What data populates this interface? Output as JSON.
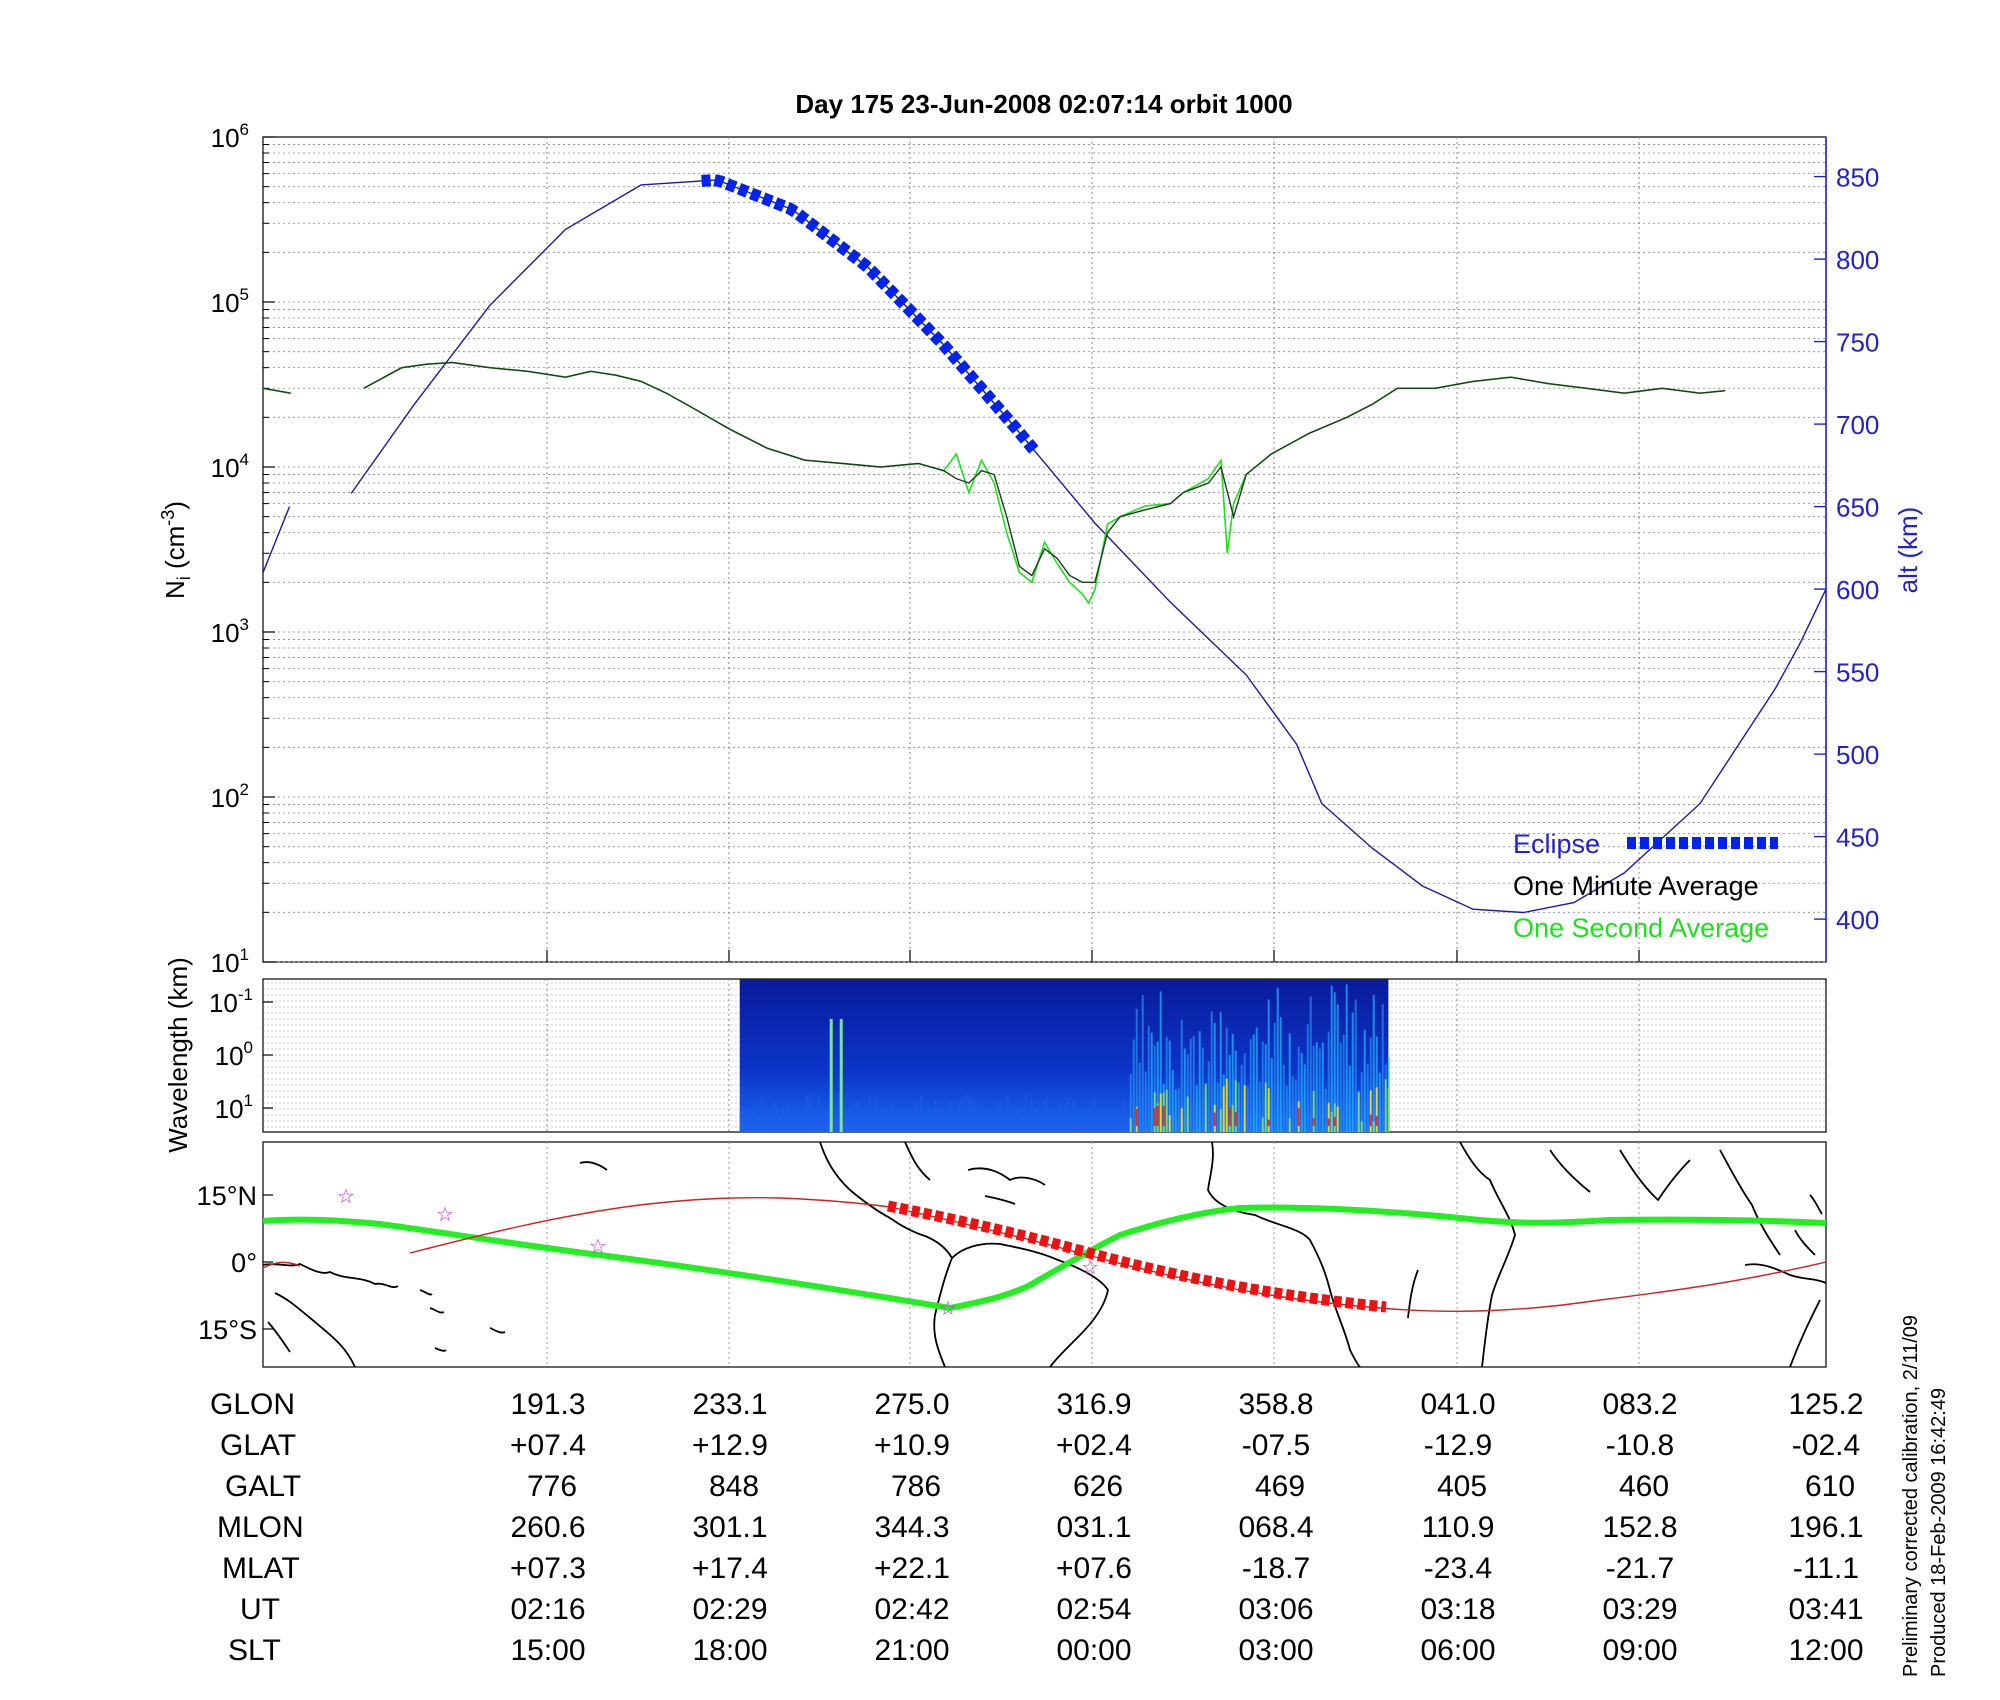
{
  "title": "Day 175  23-Jun-2008 02:07:14   orbit 1000",
  "colors": {
    "altitude": "#1a1aa6",
    "eclipse": "#0022ee",
    "one_minute": "#1a3d1a",
    "one_second": "#22dd22",
    "track": "#22ee22",
    "orbit": "#cc2222",
    "eclipse_track": "#ee1111",
    "right_axis": "#2222cc",
    "stars": "#cc33cc"
  },
  "chart_data": [
    {
      "type": "line",
      "panel": "density",
      "ylabel_left": "N_i (cm^-3)",
      "ylabel_right": "alt (km)",
      "yscale_left": "log",
      "ylim_left": [
        10,
        1000000
      ],
      "yticks_left": [
        "10^1",
        "10^2",
        "10^3",
        "10^4",
        "10^5",
        "10^6"
      ],
      "ylim_right": [
        374,
        874
      ],
      "yticks_right": [
        400,
        450,
        500,
        550,
        600,
        650,
        700,
        750,
        800,
        850
      ],
      "grid": true,
      "xlim_minutes": [
        0,
        86
      ],
      "legend_position": "bottom-right",
      "legend": [
        "Eclipse",
        "One Minute Average",
        "One Second Average"
      ],
      "series": [
        {
          "name": "alt",
          "axis": "right",
          "points": [
            [
              0,
              610
            ],
            [
              2.1,
              650
            ],
            [
              7,
              658
            ],
            [
              12,
              712
            ],
            [
              18,
              772
            ],
            [
              24,
              818
            ],
            [
              30,
              845
            ],
            [
              36,
              848
            ],
            [
              42,
              830
            ],
            [
              48,
              795
            ],
            [
              54,
              748
            ],
            [
              60,
              695
            ],
            [
              66,
              640
            ],
            [
              72,
              592
            ],
            [
              78,
              548
            ],
            [
              82,
              506
            ],
            [
              84,
              470
            ],
            [
              88,
              443
            ],
            [
              92,
              420
            ],
            [
              96,
              406
            ],
            [
              100,
              404
            ],
            [
              104,
              410
            ],
            [
              108,
              428
            ],
            [
              114,
              470
            ],
            [
              120,
              540
            ],
            [
              122,
              568
            ],
            [
              124,
              600
            ]
          ]
        },
        {
          "name": "Eclipse",
          "axis": "right",
          "segment_minutes": [
            34.8,
            61.5
          ]
        },
        {
          "name": "One Minute Average",
          "axis": "left",
          "points": [
            [
              0,
              30000
            ],
            [
              2.2,
              28000
            ],
            [
              8,
              30000
            ],
            [
              11,
              40000
            ],
            [
              13,
              42000
            ],
            [
              15,
              43000
            ],
            [
              18,
              40000
            ],
            [
              21,
              38000
            ],
            [
              24,
              35000
            ],
            [
              26,
              38000
            ],
            [
              28,
              36000
            ],
            [
              30,
              33000
            ],
            [
              32,
              28000
            ],
            [
              34,
              23000
            ],
            [
              37,
              17000
            ],
            [
              40,
              13000
            ],
            [
              43,
              11000
            ],
            [
              46,
              10500
            ],
            [
              49,
              10000
            ],
            [
              52,
              10500
            ],
            [
              54,
              9500
            ],
            [
              55,
              8500
            ],
            [
              56,
              8000
            ],
            [
              57,
              9500
            ],
            [
              58,
              9000
            ],
            [
              59,
              5000
            ],
            [
              60,
              2500
            ],
            [
              61,
              2200
            ],
            [
              62,
              3200
            ],
            [
              63,
              2800
            ],
            [
              64,
              2200
            ],
            [
              65,
              2000
            ],
            [
              66,
              2000
            ],
            [
              67,
              4000
            ],
            [
              68,
              5000
            ],
            [
              70,
              5500
            ],
            [
              72,
              6000
            ],
            [
              73,
              7000
            ],
            [
              75,
              8000
            ],
            [
              76,
              10000
            ],
            [
              77,
              5000
            ],
            [
              78,
              9000
            ],
            [
              80,
              12000
            ],
            [
              83,
              16000
            ],
            [
              86,
              20000
            ],
            [
              88,
              24000
            ],
            [
              90,
              30000
            ],
            [
              93,
              30000
            ],
            [
              96,
              33000
            ],
            [
              99,
              35000
            ],
            [
              102,
              32000
            ],
            [
              105,
              30000
            ],
            [
              108,
              28000
            ],
            [
              111,
              30000
            ],
            [
              114,
              28000
            ],
            [
              116,
              29000
            ]
          ]
        },
        {
          "name": "One Second Average",
          "axis": "left",
          "points": [
            [
              0,
              30000
            ],
            [
              2.2,
              28000
            ],
            [
              8,
              30000
            ],
            [
              11,
              40000
            ],
            [
              13,
              42000
            ],
            [
              15,
              43000
            ],
            [
              18,
              40000
            ],
            [
              21,
              38000
            ],
            [
              24,
              35000
            ],
            [
              26,
              38000
            ],
            [
              28,
              36000
            ],
            [
              30,
              33000
            ],
            [
              32,
              28000
            ],
            [
              34,
              23000
            ],
            [
              37,
              17000
            ],
            [
              40,
              13000
            ],
            [
              43,
              11000
            ],
            [
              46,
              10500
            ],
            [
              49,
              10000
            ],
            [
              52,
              10500
            ],
            [
              54,
              9500
            ],
            [
              55,
              12000
            ],
            [
              56,
              7000
            ],
            [
              57,
              11000
            ],
            [
              58,
              8000
            ],
            [
              59,
              4000
            ],
            [
              60,
              2300
            ],
            [
              61,
              2000
            ],
            [
              62,
              3500
            ],
            [
              63,
              2600
            ],
            [
              64,
              2000
            ],
            [
              65,
              1700
            ],
            [
              65.5,
              1500
            ],
            [
              66,
              1800
            ],
            [
              67,
              4500
            ],
            [
              68,
              5000
            ],
            [
              70,
              5800
            ],
            [
              72,
              6000
            ],
            [
              73,
              7000
            ],
            [
              75,
              8500
            ],
            [
              76,
              11000
            ],
            [
              76.5,
              3000
            ],
            [
              77,
              6000
            ],
            [
              78,
              9000
            ],
            [
              80,
              12000
            ],
            [
              83,
              16000
            ],
            [
              86,
              20000
            ],
            [
              88,
              24000
            ],
            [
              90,
              30000
            ],
            [
              93,
              30000
            ],
            [
              96,
              33000
            ],
            [
              99,
              35000
            ],
            [
              102,
              32000
            ],
            [
              105,
              30000
            ],
            [
              108,
              28000
            ],
            [
              111,
              30000
            ],
            [
              114,
              28000
            ],
            [
              116,
              29000
            ]
          ]
        }
      ]
    },
    {
      "type": "heatmap",
      "panel": "spectrogram",
      "ylabel": "Wavelength (km)",
      "yticks": [
        "10^-1",
        "10^0",
        "10^1"
      ],
      "data_range_fraction": [
        0.305,
        0.72
      ]
    },
    {
      "type": "line",
      "panel": "map",
      "yticks": [
        "15°N",
        "0°",
        "15°S"
      ],
      "series": [
        {
          "name": "magnetic equator",
          "points": []
        },
        {
          "name": "satellite track",
          "points": []
        }
      ]
    },
    {
      "type": "table",
      "panel": "ephemeris",
      "rows": [
        {
          "label": "GLON",
          "values": [
            "191.3",
            "233.1",
            "275.0",
            "316.9",
            "358.8",
            "041.0",
            "083.2",
            "125.2"
          ]
        },
        {
          "label": "GLAT",
          "values": [
            "+07.4",
            "+12.9",
            "+10.9",
            "+02.4",
            "-07.5",
            "-12.9",
            "-10.8",
            "-02.4"
          ]
        },
        {
          "label": "GALT",
          "values": [
            "776",
            "848",
            "786",
            "626",
            "469",
            "405",
            "460",
            "610"
          ]
        },
        {
          "label": "MLON",
          "values": [
            "260.6",
            "301.1",
            "344.3",
            "031.1",
            "068.4",
            "110.9",
            "152.8",
            "196.1"
          ]
        },
        {
          "label": "MLAT",
          "values": [
            "+07.3",
            "+17.4",
            "+22.1",
            "+07.6",
            "-18.7",
            "-23.4",
            "-21.7",
            "-11.1"
          ]
        },
        {
          "label": "UT",
          "values": [
            "02:16",
            "02:29",
            "02:42",
            "02:54",
            "03:06",
            "03:18",
            "03:29",
            "03:41"
          ]
        },
        {
          "label": "SLT",
          "values": [
            "15:00",
            "18:00",
            "21:00",
            "00:00",
            "03:00",
            "06:00",
            "09:00",
            "12:00"
          ]
        }
      ]
    }
  ],
  "footer": {
    "line1": "Preliminary corrected calibration, 2/11/09",
    "line2": "Produced 18-Feb-2009 16:42:49"
  }
}
